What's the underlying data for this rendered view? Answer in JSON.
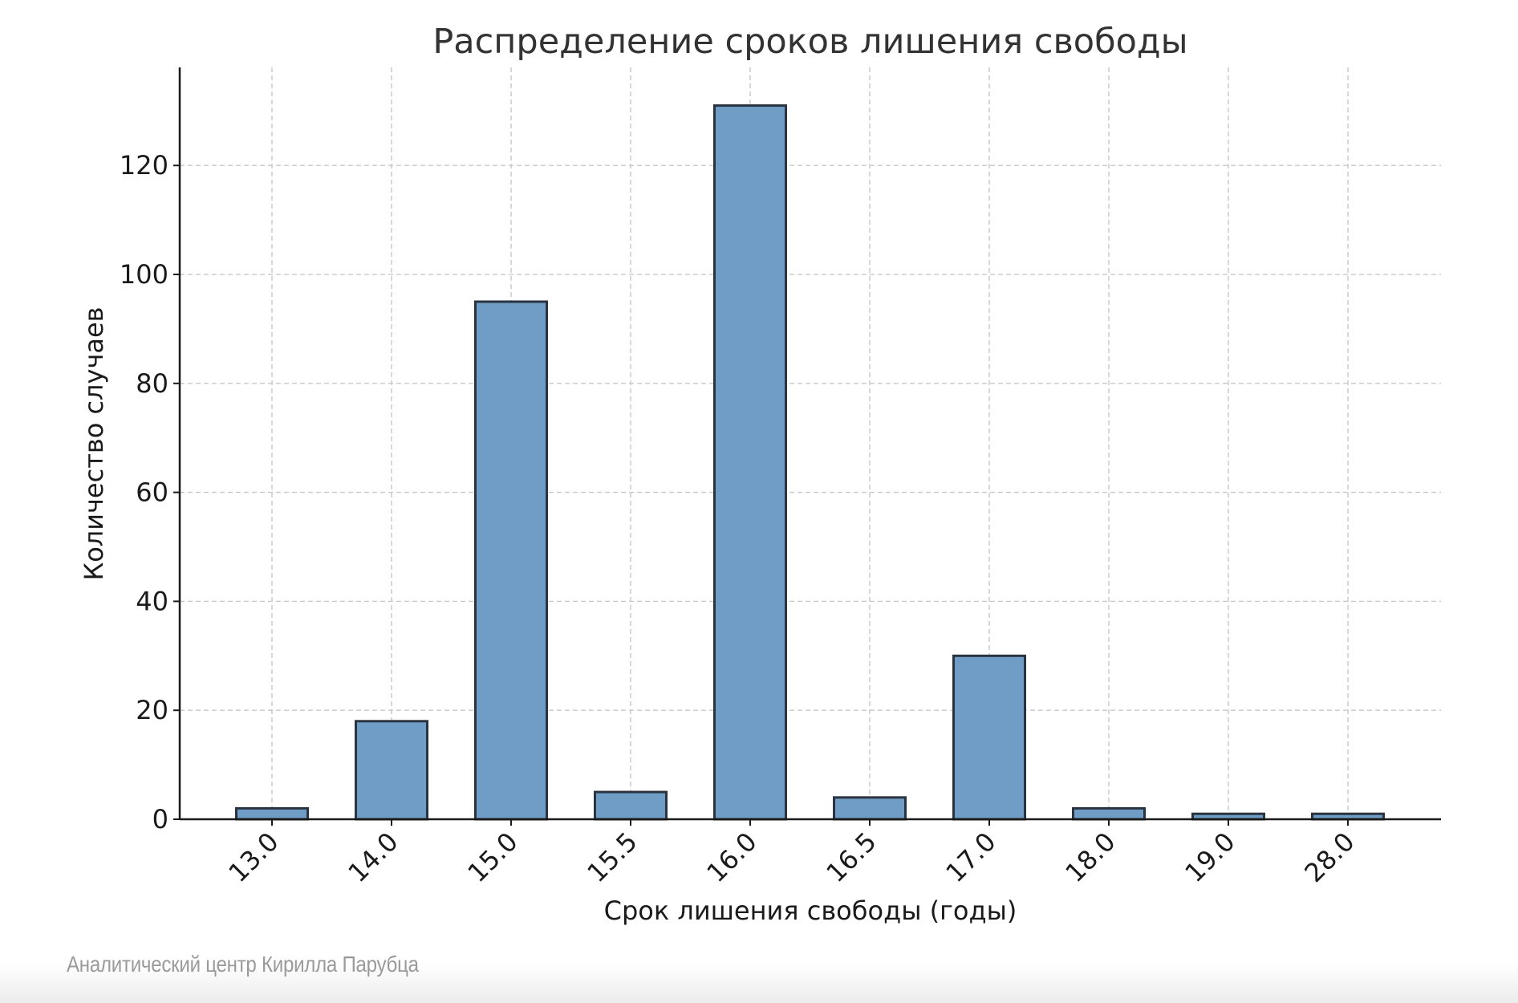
{
  "chart_data": {
    "type": "bar",
    "title": "Распределение сроков лишения свободы",
    "xlabel": "Срок лишения свободы (годы)",
    "ylabel": "Количество случаев",
    "categories": [
      "13.0",
      "14.0",
      "15.0",
      "15.5",
      "16.0",
      "16.5",
      "17.0",
      "18.0",
      "19.0",
      "28.0"
    ],
    "values": [
      2,
      18,
      95,
      5,
      131,
      4,
      30,
      2,
      1,
      1
    ],
    "ylim": [
      0,
      138
    ],
    "yticks": [
      0,
      20,
      40,
      60,
      80,
      100,
      120
    ],
    "grid": true,
    "bar_color": "#6f9dc6",
    "bar_edge_color": "#2a3440",
    "grid_color": "#c8c8c8",
    "text_color": "#1a1a1a"
  },
  "footer": {
    "source_label": "Аналитический центр Кирилла Парубца"
  }
}
